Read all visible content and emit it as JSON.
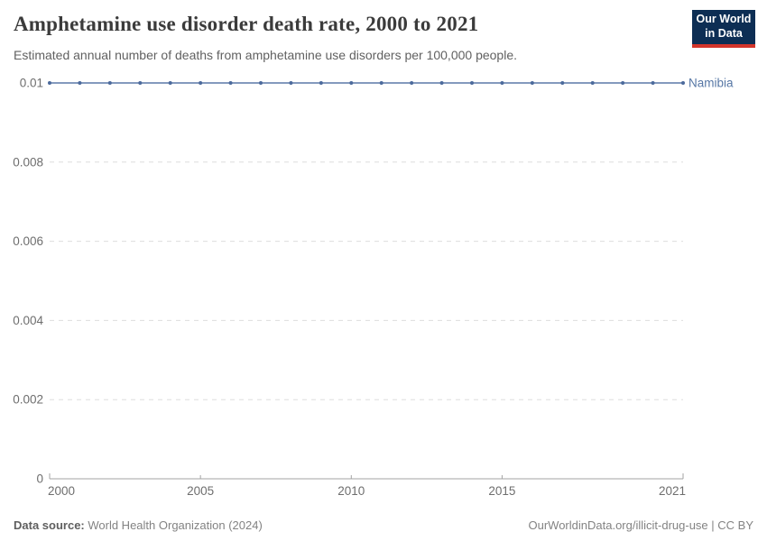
{
  "header": {
    "title": "Amphetamine use disorder death rate, 2000 to 2021",
    "subtitle": "Estimated annual number of deaths from amphetamine use disorders per 100,000 people.",
    "logo": {
      "line1": "Our World",
      "line2": "in Data"
    }
  },
  "chart_data": {
    "type": "line",
    "title": "Amphetamine use disorder death rate, 2000 to 2021",
    "xlabel": "",
    "ylabel": "",
    "x": [
      2000,
      2001,
      2002,
      2003,
      2004,
      2005,
      2006,
      2007,
      2008,
      2009,
      2010,
      2011,
      2012,
      2013,
      2014,
      2015,
      2016,
      2017,
      2018,
      2019,
      2020,
      2021
    ],
    "series": [
      {
        "name": "Namibia",
        "color": "#4c6a9c",
        "values": [
          0.01,
          0.01,
          0.01,
          0.01,
          0.01,
          0.01,
          0.01,
          0.01,
          0.01,
          0.01,
          0.01,
          0.01,
          0.01,
          0.01,
          0.01,
          0.01,
          0.01,
          0.01,
          0.01,
          0.01,
          0.01,
          0.01
        ]
      }
    ],
    "xlim": [
      2000,
      2021
    ],
    "ylim": [
      0,
      0.01
    ],
    "xticks": [
      2000,
      2005,
      2010,
      2015,
      2021
    ],
    "xtick_labels": [
      "2000",
      "2005",
      "2010",
      "2015",
      "2021"
    ],
    "yticks": [
      0,
      0.002,
      0.004,
      0.006,
      0.008,
      0.01
    ],
    "ytick_labels": [
      "0",
      "0.002",
      "0.004",
      "0.006",
      "0.008",
      "0.01"
    ],
    "grid": "horizontal-dashed",
    "legend_position": "end-of-line-label"
  },
  "footer": {
    "source_label": "Data source:",
    "source_text": " World Health Organization (2024)",
    "credit": "OurWorldinData.org/illicit-drug-use | CC BY"
  },
  "colors": {
    "line": "#5b79a8",
    "point": "#4c6a9c",
    "entity_label": "#5777a5",
    "grid": "#dedede",
    "axis": "#a3a3a3",
    "tick_label": "#6e6e6e",
    "logo_bg": "#0d2e54",
    "logo_accent": "#d3352b"
  }
}
